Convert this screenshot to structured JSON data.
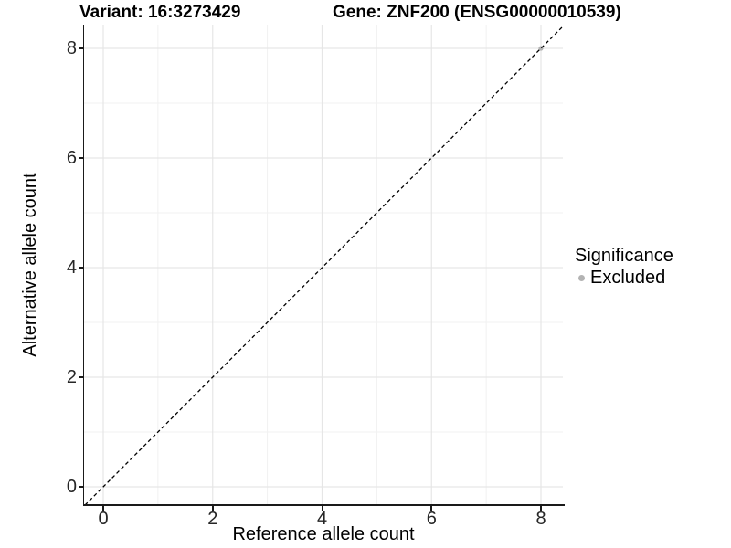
{
  "figure": {
    "background": "#ffffff"
  },
  "chart_data": {
    "type": "scatter",
    "titles": {
      "variant": "Variant: 16:3273429",
      "gene": "Gene: ZNF200 (ENSG00000010539)"
    },
    "xlabel": "Reference allele count",
    "ylabel": "Alternative allele count",
    "x_ticks": [
      0,
      2,
      4,
      6,
      8
    ],
    "y_ticks": [
      0,
      2,
      4,
      6,
      8
    ],
    "x_minor_ticks": [
      1,
      3,
      5,
      7
    ],
    "y_minor_ticks": [
      1,
      3,
      5,
      7
    ],
    "xlim": [
      -0.35,
      8.4
    ],
    "ylim": [
      -0.35,
      8.43
    ],
    "grid": {
      "major_color": "#e6e6e6",
      "minor_color": "#f1f1f1",
      "background": "#ffffff"
    },
    "axis_color": "#1a1a1a",
    "reference_line": {
      "kind": "identity",
      "slope": 1,
      "intercept": 0,
      "style": "dashed",
      "color": "#000000"
    },
    "series": [
      {
        "name": "Excluded",
        "color": "#b3b3b3",
        "points": [
          {
            "x": 8,
            "y": 8
          }
        ]
      }
    ],
    "legend": {
      "title": "Significance",
      "position": "right",
      "entries": [
        {
          "label": "Excluded",
          "color": "#b3b3b3"
        }
      ]
    }
  }
}
